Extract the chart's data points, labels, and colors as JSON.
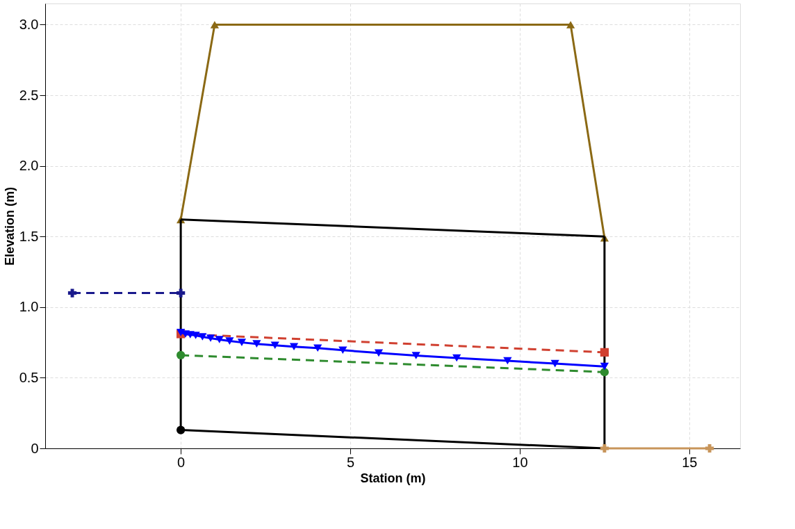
{
  "chart_data": {
    "type": "line",
    "xlabel": "Station (m)",
    "ylabel": "Elevation (m)",
    "xlim": [
      -4,
      16.5
    ],
    "ylim": [
      0,
      3.15
    ],
    "xticks": [
      0,
      5,
      10,
      15
    ],
    "yticks": [
      0,
      0.5,
      {
        "value": 1,
        "label": "1.0"
      },
      1.5,
      {
        "value": 2,
        "label": "2.0"
      },
      2.5,
      {
        "value": 3,
        "label": "3.0"
      }
    ],
    "grid": true,
    "series": [
      {
        "color": "#8b6914",
        "marker": "triangle",
        "line_style": "solid",
        "x": [
          0,
          1,
          11.5,
          12.5
        ],
        "values": [
          1.62,
          3.0,
          3.0,
          1.49
        ]
      },
      {
        "color": "#000000",
        "marker": "none",
        "line_style": "solid",
        "x": [
          0,
          12.5
        ],
        "values": [
          1.62,
          1.5
        ]
      },
      {
        "color": "#000000",
        "marker": "none",
        "line_style": "solid",
        "x": [
          0,
          12.5
        ],
        "values": [
          0.13,
          0
        ]
      },
      {
        "color": "#000000",
        "marker": "none",
        "line_style": "solid",
        "x": [
          0,
          0
        ],
        "values": [
          0.13,
          1.62
        ]
      },
      {
        "color": "#000000",
        "marker": "none",
        "line_style": "solid",
        "x": [
          12.5,
          12.5
        ],
        "values": [
          0,
          1.5
        ]
      },
      {
        "type": "scatter",
        "color": "#000000",
        "x": [
          0
        ],
        "values": [
          0.13
        ]
      },
      {
        "color": "#1a1a8c",
        "marker": "cross",
        "line_style": "dashed",
        "x": [
          -3.2,
          0
        ],
        "values": [
          1.1,
          1.1
        ]
      },
      {
        "color": "#d04030",
        "marker": "square",
        "line_style": "dashed",
        "x": [
          0,
          12.5
        ],
        "values": [
          0.81,
          0.68
        ]
      },
      {
        "color": "#2e8b2e",
        "marker": "circle",
        "line_style": "dashed",
        "x": [
          0,
          12.5
        ],
        "values": [
          0.66,
          0.54
        ]
      },
      {
        "color": "#0000ff",
        "marker": "triangle-down",
        "line_style": "solid",
        "x": [
          0,
          0.14,
          0.28,
          0.44,
          0.64,
          0.88,
          1.14,
          1.44,
          1.8,
          2.24,
          2.78,
          3.34,
          4.04,
          4.78,
          5.84,
          6.94,
          8.14,
          9.64,
          11.04,
          12.5
        ],
        "values": [
          0.82,
          0.81,
          0.805,
          0.8,
          0.79,
          0.78,
          0.77,
          0.76,
          0.75,
          0.74,
          0.73,
          0.72,
          0.71,
          0.695,
          0.675,
          0.657,
          0.64,
          0.62,
          0.6,
          0.58
        ]
      },
      {
        "color": "#c8955a",
        "marker": "cross",
        "line_style": "solid",
        "x": [
          12.5,
          15.6
        ],
        "values": [
          0,
          0
        ]
      }
    ]
  }
}
